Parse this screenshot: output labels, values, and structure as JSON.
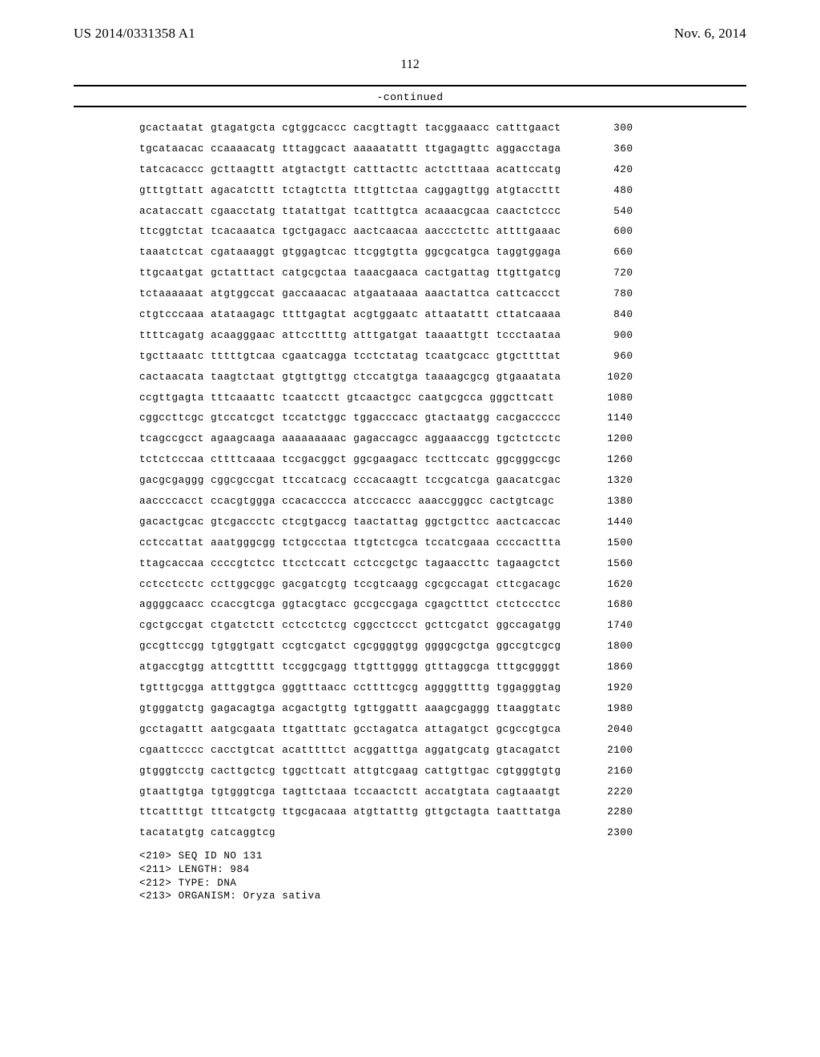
{
  "header": {
    "publication": "US 2014/0331358 A1",
    "date": "Nov. 6, 2014",
    "page": "112",
    "continued": "-continued"
  },
  "sequence_rows": [
    {
      "blocks": "gcactaatat gtagatgcta cgtggcaccc cacgttagtt tacggaaacc catttgaact",
      "pos": "300"
    },
    {
      "blocks": "tgcataacac ccaaaacatg tttaggcact aaaaatattt ttgagagttc aggacctaga",
      "pos": "360"
    },
    {
      "blocks": "tatcacaccc gcttaagttt atgtactgtt catttacttc actctttaaa acattccatg",
      "pos": "420"
    },
    {
      "blocks": "gtttgttatt agacatcttt tctagtctta tttgttctaa caggagttgg atgtaccttt",
      "pos": "480"
    },
    {
      "blocks": "acataccatt cgaacctatg ttatattgat tcatttgtca acaaacgcaa caactctccc",
      "pos": "540"
    },
    {
      "blocks": "ttcggtctat tcacaaatca tgctgagacc aactcaacaa aaccctcttc attttgaaac",
      "pos": "600"
    },
    {
      "blocks": "taaatctcat cgataaaggt gtggagtcac ttcggtgtta ggcgcatgca taggtggaga",
      "pos": "660"
    },
    {
      "blocks": "ttgcaatgat gctatttact catgcgctaa taaacgaaca cactgattag ttgttgatcg",
      "pos": "720"
    },
    {
      "blocks": "tctaaaaaat atgtggccat gaccaaacac atgaataaaa aaactattca cattcaccct",
      "pos": "780"
    },
    {
      "blocks": "ctgtcccaaa atataagagc ttttgagtat acgtggaatc attaatattt cttatcaaaa",
      "pos": "840"
    },
    {
      "blocks": "ttttcagatg acaagggaac attccttttg atttgatgat taaaattgtt tccctaataa",
      "pos": "900"
    },
    {
      "blocks": "tgcttaaatc tttttgtcaa cgaatcagga tcctctatag tcaatgcacc gtgcttttat",
      "pos": "960"
    },
    {
      "blocks": "cactaacata taagtctaat gtgttgttgg ctccatgtga taaaagcgcg gtgaaatata",
      "pos": "1020"
    },
    {
      "blocks": "ccgttgagta tttcaaattc tcaatcctt gtcaactgcc caatgcgcca gggcttcatt",
      "pos": "1080"
    },
    {
      "blocks": "cggccttcgc gtccatcgct tccatctggc tggacccacc gtactaatgg cacgaccccc",
      "pos": "1140"
    },
    {
      "blocks": "tcagccgcct agaagcaaga aaaaaaaaac gagaccagcc aggaaaccgg tgctctcctc",
      "pos": "1200"
    },
    {
      "blocks": "tctctcccaa cttttcaaaa tccgacggct ggcgaagacc tccttccatc ggcgggccgc",
      "pos": "1260"
    },
    {
      "blocks": "gacgcgaggg cggcgccgat ttccatcacg cccacaagtt tccgcatcga gaacatcgac",
      "pos": "1320"
    },
    {
      "blocks": "aaccccacct ccacgtggga ccacacccca atcccaccc aaaccgggcc cactgtcagc",
      "pos": "1380"
    },
    {
      "blocks": "gacactgcac gtcgaccctc ctcgtgaccg taactattag ggctgcttcc aactcaccac",
      "pos": "1440"
    },
    {
      "blocks": "cctccattat aaatgggcgg tctgccctaa ttgtctcgca tccatcgaaa ccccacttta",
      "pos": "1500"
    },
    {
      "blocks": "ttagcaccaa ccccgtctcc ttcctccatt cctccgctgc tagaaccttc tagaagctct",
      "pos": "1560"
    },
    {
      "blocks": "cctcctcctc ccttggcggc gacgatcgtg tccgtcaagg cgcgccagat cttcgacagc",
      "pos": "1620"
    },
    {
      "blocks": "aggggcaacc ccaccgtcga ggtacgtacc gccgccgaga cgagctttct ctctccctcc",
      "pos": "1680"
    },
    {
      "blocks": "cgctgccgat ctgatctctt cctcctctcg cggcctccct gcttcgatct ggccagatgg",
      "pos": "1740"
    },
    {
      "blocks": "gccgttccgg tgtggtgatt ccgtcgatct cgcggggtgg ggggcgctga ggccgtcgcg",
      "pos": "1800"
    },
    {
      "blocks": "atgaccgtgg attcgttttt tccggcgagg ttgtttgggg gtttaggcga tttgcggggt",
      "pos": "1860"
    },
    {
      "blocks": "tgtttgcgga atttggtgca gggtttaacc ccttttcgcg aggggttttg tggagggtag",
      "pos": "1920"
    },
    {
      "blocks": "gtgggatctg gagacagtga acgactgttg tgttggattt aaagcgaggg ttaaggtatc",
      "pos": "1980"
    },
    {
      "blocks": "gcctagattt aatgcgaata ttgatttatc gcctagatca attagatgct gcgccgtgca",
      "pos": "2040"
    },
    {
      "blocks": "cgaattcccc cacctgtcat acatttttct acggatttga aggatgcatg gtacagatct",
      "pos": "2100"
    },
    {
      "blocks": "gtgggtcctg cacttgctcg tggcttcatt attgtcgaag cattgttgac cgtgggtgtg",
      "pos": "2160"
    },
    {
      "blocks": "gtaattgtga tgtgggtcga tagttctaaa tccaactctt accatgtata cagtaaatgt",
      "pos": "2220"
    },
    {
      "blocks": "ttcattttgt tttcatgctg ttgcgacaaa atgttatttg gttgctagta taatttatga",
      "pos": "2280"
    },
    {
      "blocks": "tacatatgtg catcaggtcg",
      "pos": "2300"
    }
  ],
  "metadata": {
    "seq_id_line": "<210> SEQ ID NO 131",
    "length_line": "<211> LENGTH: 984",
    "type_line": "<212> TYPE: DNA",
    "organism_line": "<213> ORGANISM: Oryza sativa"
  }
}
